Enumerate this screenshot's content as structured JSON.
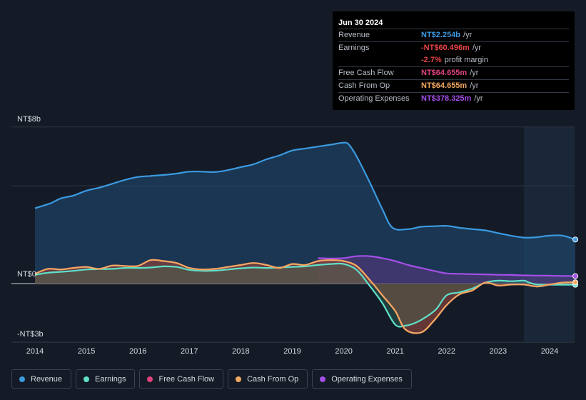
{
  "tooltip": {
    "date": "Jun 30 2024",
    "rows": [
      {
        "label": "Revenue",
        "value": "NT$2.254b",
        "unit": "/yr",
        "color": "#3b9ae1"
      },
      {
        "label": "Earnings",
        "value": "-NT$60.496m",
        "unit": "/yr",
        "color": "#e64545"
      },
      {
        "label": "",
        "value": "-2.7%",
        "unit": "profit margin",
        "color": "#e64545"
      },
      {
        "label": "Free Cash Flow",
        "value": "NT$64.655m",
        "unit": "/yr",
        "color": "#e0437e"
      },
      {
        "label": "Cash From Op",
        "value": "NT$64.655m",
        "unit": "/yr",
        "color": "#f0a860"
      },
      {
        "label": "Operating Expenses",
        "value": "NT$378.325m",
        "unit": "/yr",
        "color": "#a44fe8"
      }
    ]
  },
  "legend": [
    {
      "label": "Revenue",
      "color": "#3b9ae1"
    },
    {
      "label": "Earnings",
      "color": "#5fe0c8"
    },
    {
      "label": "Free Cash Flow",
      "color": "#e0437e"
    },
    {
      "label": "Cash From Op",
      "color": "#f0a860"
    },
    {
      "label": "Operating Expenses",
      "color": "#a44fe8"
    }
  ],
  "chart_data": {
    "type": "area",
    "unit": "NT$ billions",
    "ylim": [
      -3,
      8
    ],
    "y_tick_labels": [
      {
        "value": 8,
        "label": "NT$8b"
      },
      {
        "value": 0,
        "label": "NT$0"
      },
      {
        "value": -3,
        "label": "-NT$3b"
      }
    ],
    "x_tick_labels": [
      "2014",
      "2015",
      "2016",
      "2017",
      "2018",
      "2019",
      "2020",
      "2021",
      "2022",
      "2023",
      "2024"
    ],
    "xlim": [
      2013.55,
      2024.52
    ],
    "highlight_from": 2023.5,
    "series": [
      {
        "name": "Revenue",
        "color": "#3b9ae1",
        "x": [
          2014.0,
          2014.3,
          2014.5,
          2014.75,
          2015.0,
          2015.25,
          2015.5,
          2015.75,
          2016.0,
          2016.25,
          2016.5,
          2016.75,
          2017.0,
          2017.25,
          2017.5,
          2017.75,
          2018.0,
          2018.25,
          2018.5,
          2018.75,
          2019.0,
          2019.25,
          2019.5,
          2019.75,
          2020.0,
          2020.1,
          2020.25,
          2020.5,
          2020.75,
          2020.95,
          2021.25,
          2021.5,
          2021.75,
          2022.0,
          2022.25,
          2022.5,
          2022.75,
          2023.0,
          2023.25,
          2023.5,
          2023.75,
          2024.0,
          2024.25,
          2024.5
        ],
        "values": [
          3.85,
          4.1,
          4.35,
          4.5,
          4.75,
          4.9,
          5.1,
          5.3,
          5.45,
          5.5,
          5.55,
          5.62,
          5.72,
          5.72,
          5.7,
          5.8,
          5.95,
          6.1,
          6.35,
          6.55,
          6.8,
          6.9,
          7.0,
          7.1,
          7.2,
          7.1,
          6.5,
          5.2,
          3.8,
          2.85,
          2.78,
          2.9,
          2.93,
          2.95,
          2.85,
          2.78,
          2.72,
          2.58,
          2.45,
          2.35,
          2.37,
          2.45,
          2.45,
          2.25
        ]
      },
      {
        "name": "Earnings",
        "color": "#5fe0c8",
        "x": [
          2014.0,
          2014.25,
          2014.5,
          2014.75,
          2015.0,
          2015.25,
          2015.5,
          2015.75,
          2016.0,
          2016.25,
          2016.5,
          2016.75,
          2017.0,
          2017.25,
          2017.5,
          2017.75,
          2018.0,
          2018.25,
          2018.5,
          2018.75,
          2019.0,
          2019.25,
          2019.5,
          2019.75,
          2020.0,
          2020.25,
          2020.5,
          2020.75,
          2021.0,
          2021.2,
          2021.4,
          2021.6,
          2021.8,
          2022.0,
          2022.25,
          2022.5,
          2022.75,
          2023.0,
          2023.25,
          2023.5,
          2023.6,
          2023.75,
          2024.0,
          2024.25,
          2024.5
        ],
        "values": [
          0.45,
          0.55,
          0.6,
          0.65,
          0.72,
          0.74,
          0.75,
          0.8,
          0.8,
          0.82,
          0.88,
          0.85,
          0.7,
          0.65,
          0.66,
          0.72,
          0.78,
          0.82,
          0.8,
          0.82,
          0.85,
          0.88,
          0.95,
          1.0,
          1.0,
          0.7,
          -0.1,
          -1.0,
          -2.1,
          -2.15,
          -2.0,
          -1.7,
          -1.3,
          -0.6,
          -0.45,
          -0.25,
          0.05,
          0.15,
          0.12,
          0.15,
          0.05,
          -0.05,
          -0.06,
          -0.06,
          -0.06
        ]
      },
      {
        "name": "Free Cash Flow",
        "color": "#e0437e",
        "x": [
          2014.0,
          2014.25,
          2014.5,
          2014.75,
          2015.0,
          2015.25,
          2015.5,
          2015.75,
          2016.0,
          2016.25,
          2016.5,
          2016.75,
          2017.0,
          2017.25,
          2017.5,
          2017.75,
          2018.0,
          2018.25,
          2018.5,
          2018.75,
          2019.0,
          2019.25,
          2019.5,
          2019.75,
          2020.0,
          2020.25,
          2020.5,
          2020.75,
          2021.0,
          2021.2,
          2021.5,
          2021.75,
          2022.0,
          2022.25,
          2022.5,
          2022.75,
          2023.0,
          2023.25,
          2023.5,
          2023.75,
          2024.0,
          2024.25,
          2024.5
        ],
        "values": [
          0.5,
          0.75,
          0.72,
          0.8,
          0.85,
          0.75,
          0.92,
          0.9,
          0.9,
          1.2,
          1.15,
          1.05,
          0.8,
          0.72,
          0.75,
          0.85,
          0.95,
          1.05,
          0.95,
          0.8,
          1.0,
          0.95,
          1.15,
          1.2,
          1.15,
          0.9,
          0.2,
          -0.6,
          -1.4,
          -2.35,
          -2.5,
          -1.9,
          -1.1,
          -0.55,
          -0.35,
          0.05,
          -0.1,
          -0.05,
          -0.05,
          -0.15,
          -0.05,
          0.05,
          0.065
        ]
      },
      {
        "name": "Cash From Op",
        "color": "#f0a860",
        "x": [
          2014.0,
          2014.25,
          2014.5,
          2014.75,
          2015.0,
          2015.25,
          2015.5,
          2015.75,
          2016.0,
          2016.25,
          2016.5,
          2016.75,
          2017.0,
          2017.25,
          2017.5,
          2017.75,
          2018.0,
          2018.25,
          2018.5,
          2018.75,
          2019.0,
          2019.25,
          2019.5,
          2019.75,
          2020.0,
          2020.25,
          2020.5,
          2020.75,
          2021.0,
          2021.2,
          2021.5,
          2021.75,
          2022.0,
          2022.25,
          2022.5,
          2022.75,
          2023.0,
          2023.25,
          2023.5,
          2023.75,
          2024.0,
          2024.25,
          2024.5
        ],
        "values": [
          0.5,
          0.75,
          0.72,
          0.8,
          0.85,
          0.75,
          0.92,
          0.9,
          0.9,
          1.2,
          1.15,
          1.05,
          0.8,
          0.72,
          0.75,
          0.85,
          0.95,
          1.05,
          0.95,
          0.8,
          1.0,
          0.95,
          1.15,
          1.2,
          1.15,
          0.9,
          0.2,
          -0.6,
          -1.4,
          -2.35,
          -2.5,
          -1.9,
          -1.1,
          -0.55,
          -0.35,
          0.05,
          -0.1,
          -0.05,
          -0.05,
          -0.15,
          -0.05,
          0.05,
          0.065
        ]
      },
      {
        "name": "Operating Expenses",
        "color": "#a44fe8",
        "x": [
          2019.5,
          2019.75,
          2020.0,
          2020.25,
          2020.5,
          2020.75,
          2021.0,
          2021.25,
          2021.5,
          2021.75,
          2022.0,
          2022.25,
          2022.5,
          2022.75,
          2023.0,
          2023.25,
          2023.5,
          2023.75,
          2024.0,
          2024.25,
          2024.5
        ],
        "values": [
          1.3,
          1.28,
          1.3,
          1.4,
          1.4,
          1.3,
          1.15,
          0.95,
          0.8,
          0.65,
          0.52,
          0.5,
          0.48,
          0.47,
          0.45,
          0.44,
          0.42,
          0.41,
          0.4,
          0.39,
          0.38
        ]
      }
    ]
  }
}
